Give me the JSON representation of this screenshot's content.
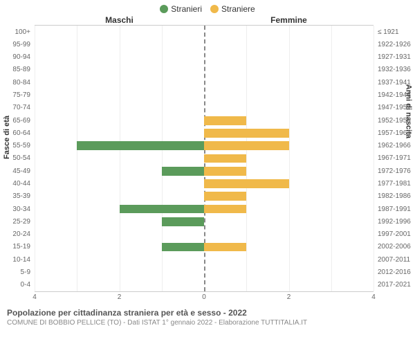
{
  "chart": {
    "type": "population-pyramid",
    "legend": [
      {
        "label": "Stranieri",
        "color": "#5b9b5b"
      },
      {
        "label": "Straniere",
        "color": "#f0b94a"
      }
    ],
    "header_left": "Maschi",
    "header_right": "Femmine",
    "y_title_left": "Fasce di età",
    "y_title_right": "Anni di nascita",
    "x_max": 4,
    "x_ticks": [
      4,
      2,
      0,
      2,
      4
    ],
    "rows": [
      {
        "age": "100+",
        "birth": "≤ 1921",
        "m": 0,
        "f": 0
      },
      {
        "age": "95-99",
        "birth": "1922-1926",
        "m": 0,
        "f": 0
      },
      {
        "age": "90-94",
        "birth": "1927-1931",
        "m": 0,
        "f": 0
      },
      {
        "age": "85-89",
        "birth": "1932-1936",
        "m": 0,
        "f": 0
      },
      {
        "age": "80-84",
        "birth": "1937-1941",
        "m": 0,
        "f": 0
      },
      {
        "age": "75-79",
        "birth": "1942-1946",
        "m": 0,
        "f": 0
      },
      {
        "age": "70-74",
        "birth": "1947-1951",
        "m": 0,
        "f": 0
      },
      {
        "age": "65-69",
        "birth": "1952-1956",
        "m": 0,
        "f": 1
      },
      {
        "age": "60-64",
        "birth": "1957-1961",
        "m": 0,
        "f": 2
      },
      {
        "age": "55-59",
        "birth": "1962-1966",
        "m": 3,
        "f": 2
      },
      {
        "age": "50-54",
        "birth": "1967-1971",
        "m": 0,
        "f": 1
      },
      {
        "age": "45-49",
        "birth": "1972-1976",
        "m": 1,
        "f": 1
      },
      {
        "age": "40-44",
        "birth": "1977-1981",
        "m": 0,
        "f": 2
      },
      {
        "age": "35-39",
        "birth": "1982-1986",
        "m": 0,
        "f": 1
      },
      {
        "age": "30-34",
        "birth": "1987-1991",
        "m": 2,
        "f": 1
      },
      {
        "age": "25-29",
        "birth": "1992-1996",
        "m": 1,
        "f": 0
      },
      {
        "age": "20-24",
        "birth": "1997-2001",
        "m": 0,
        "f": 0
      },
      {
        "age": "15-19",
        "birth": "2002-2006",
        "m": 1,
        "f": 1
      },
      {
        "age": "10-14",
        "birth": "2007-2011",
        "m": 0,
        "f": 0
      },
      {
        "age": "5-9",
        "birth": "2012-2016",
        "m": 0,
        "f": 0
      },
      {
        "age": "0-4",
        "birth": "2017-2021",
        "m": 0,
        "f": 0
      }
    ],
    "colors": {
      "male_bar": "#5b9b5b",
      "female_bar": "#f0b94a",
      "center_line": "#888888",
      "grid": "#eeeeee",
      "background": "#ffffff"
    },
    "caption_title": "Popolazione per cittadinanza straniera per età e sesso - 2022",
    "caption_sub": "COMUNE DI BOBBIO PELLICE (TO) - Dati ISTAT 1° gennaio 2022 - Elaborazione TUTTITALIA.IT"
  }
}
